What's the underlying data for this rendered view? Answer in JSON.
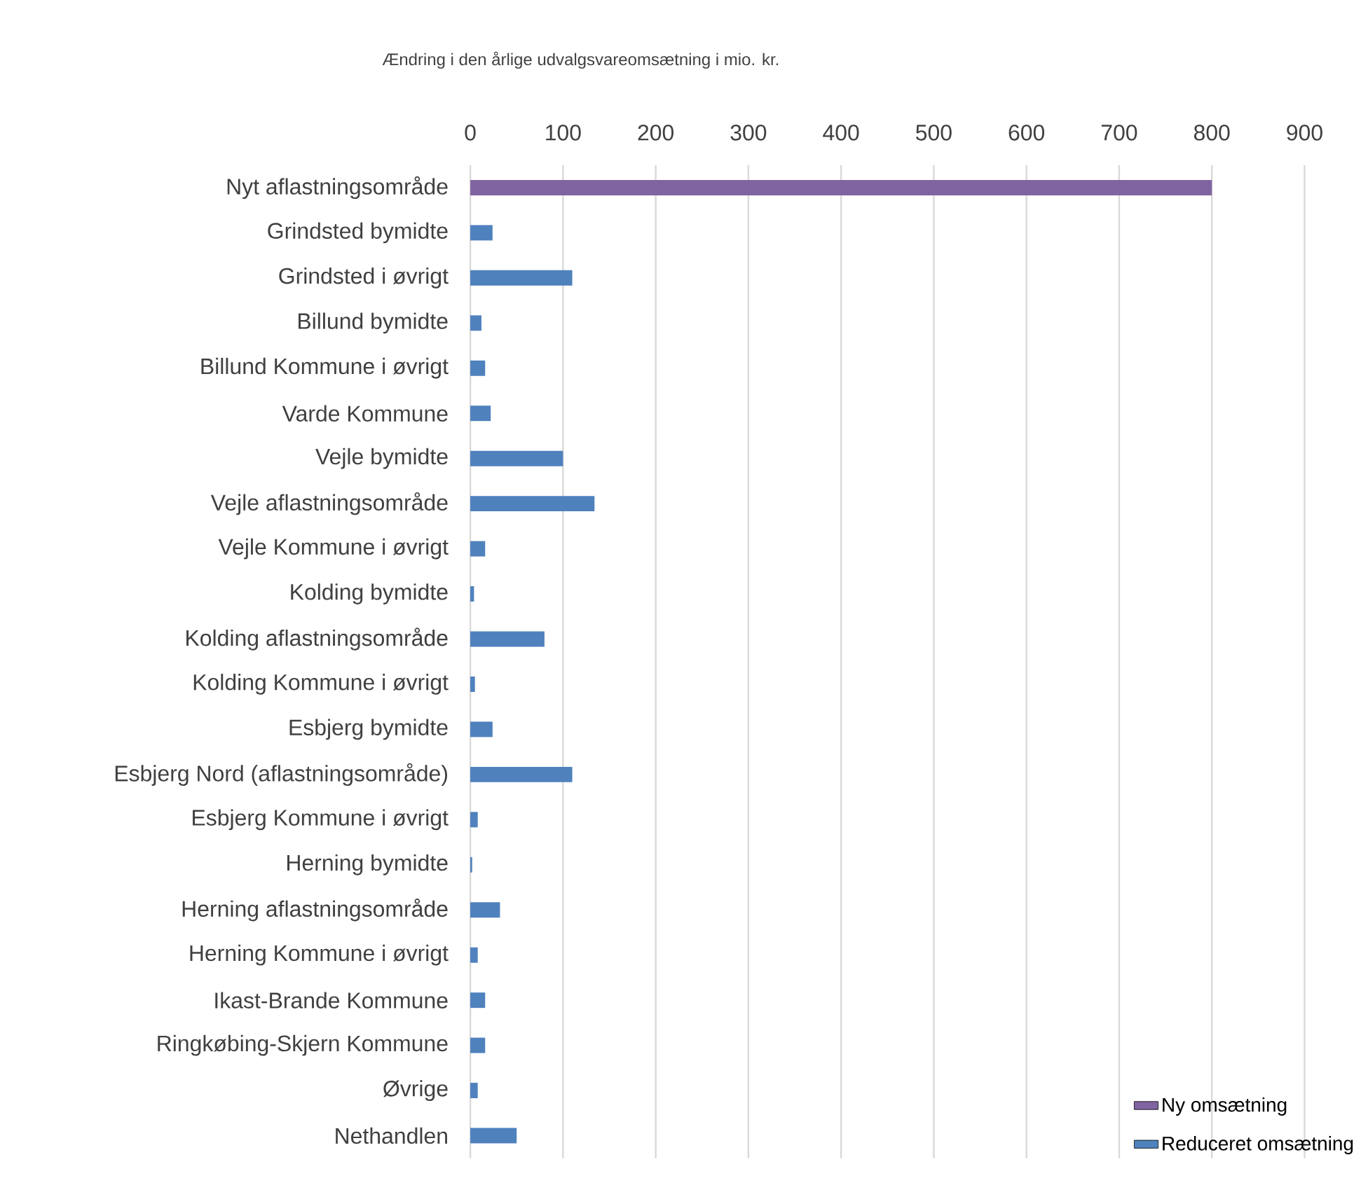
{
  "chart_data": {
    "type": "bar",
    "orientation": "horizontal",
    "title": "Ændring i den årlige udvalgsvareomsætning i mio. kr.",
    "categories": [
      "Nyt aflastningsområde",
      "Grindsted bymidte",
      "Grindsted i øvrigt",
      "Billund bymidte",
      "Billund Kommune i øvrigt",
      "Varde Kommune",
      "Vejle bymidte",
      "Vejle aflastningsområde",
      "Vejle Kommune i øvrigt",
      "Kolding bymidte",
      "Kolding aflastningsområde",
      "Kolding Kommune i øvrigt",
      "Esbjerg bymidte",
      "Esbjerg Nord (aflastningsområde)",
      "Esbjerg Kommune i øvrigt",
      "Herning bymidte",
      "Herning aflastningsområde",
      "Herning Kommune i øvrigt",
      "Ikast-Brande Kommune",
      "Ringkøbing-Skjern Kommune",
      "Øvrige",
      "Nethandlen"
    ],
    "series": [
      {
        "name": "Ny omsætning",
        "color": "#8064a2",
        "values": [
          800,
          null,
          null,
          null,
          null,
          null,
          null,
          null,
          null,
          null,
          null,
          null,
          null,
          null,
          null,
          null,
          null,
          null,
          null,
          null,
          null,
          null
        ]
      },
      {
        "name": "Reduceret omsætning",
        "color": "#4f81bd",
        "values": [
          null,
          24,
          110,
          12,
          16,
          22,
          100,
          134,
          16,
          4,
          80,
          5,
          24,
          110,
          8,
          2,
          32,
          8,
          16,
          16,
          8,
          50
        ]
      }
    ],
    "xlim": [
      0,
      900
    ],
    "xticks": [
      0,
      100,
      200,
      300,
      400,
      500,
      600,
      700,
      800,
      900
    ],
    "grid": "x",
    "legend": "bottom right"
  }
}
